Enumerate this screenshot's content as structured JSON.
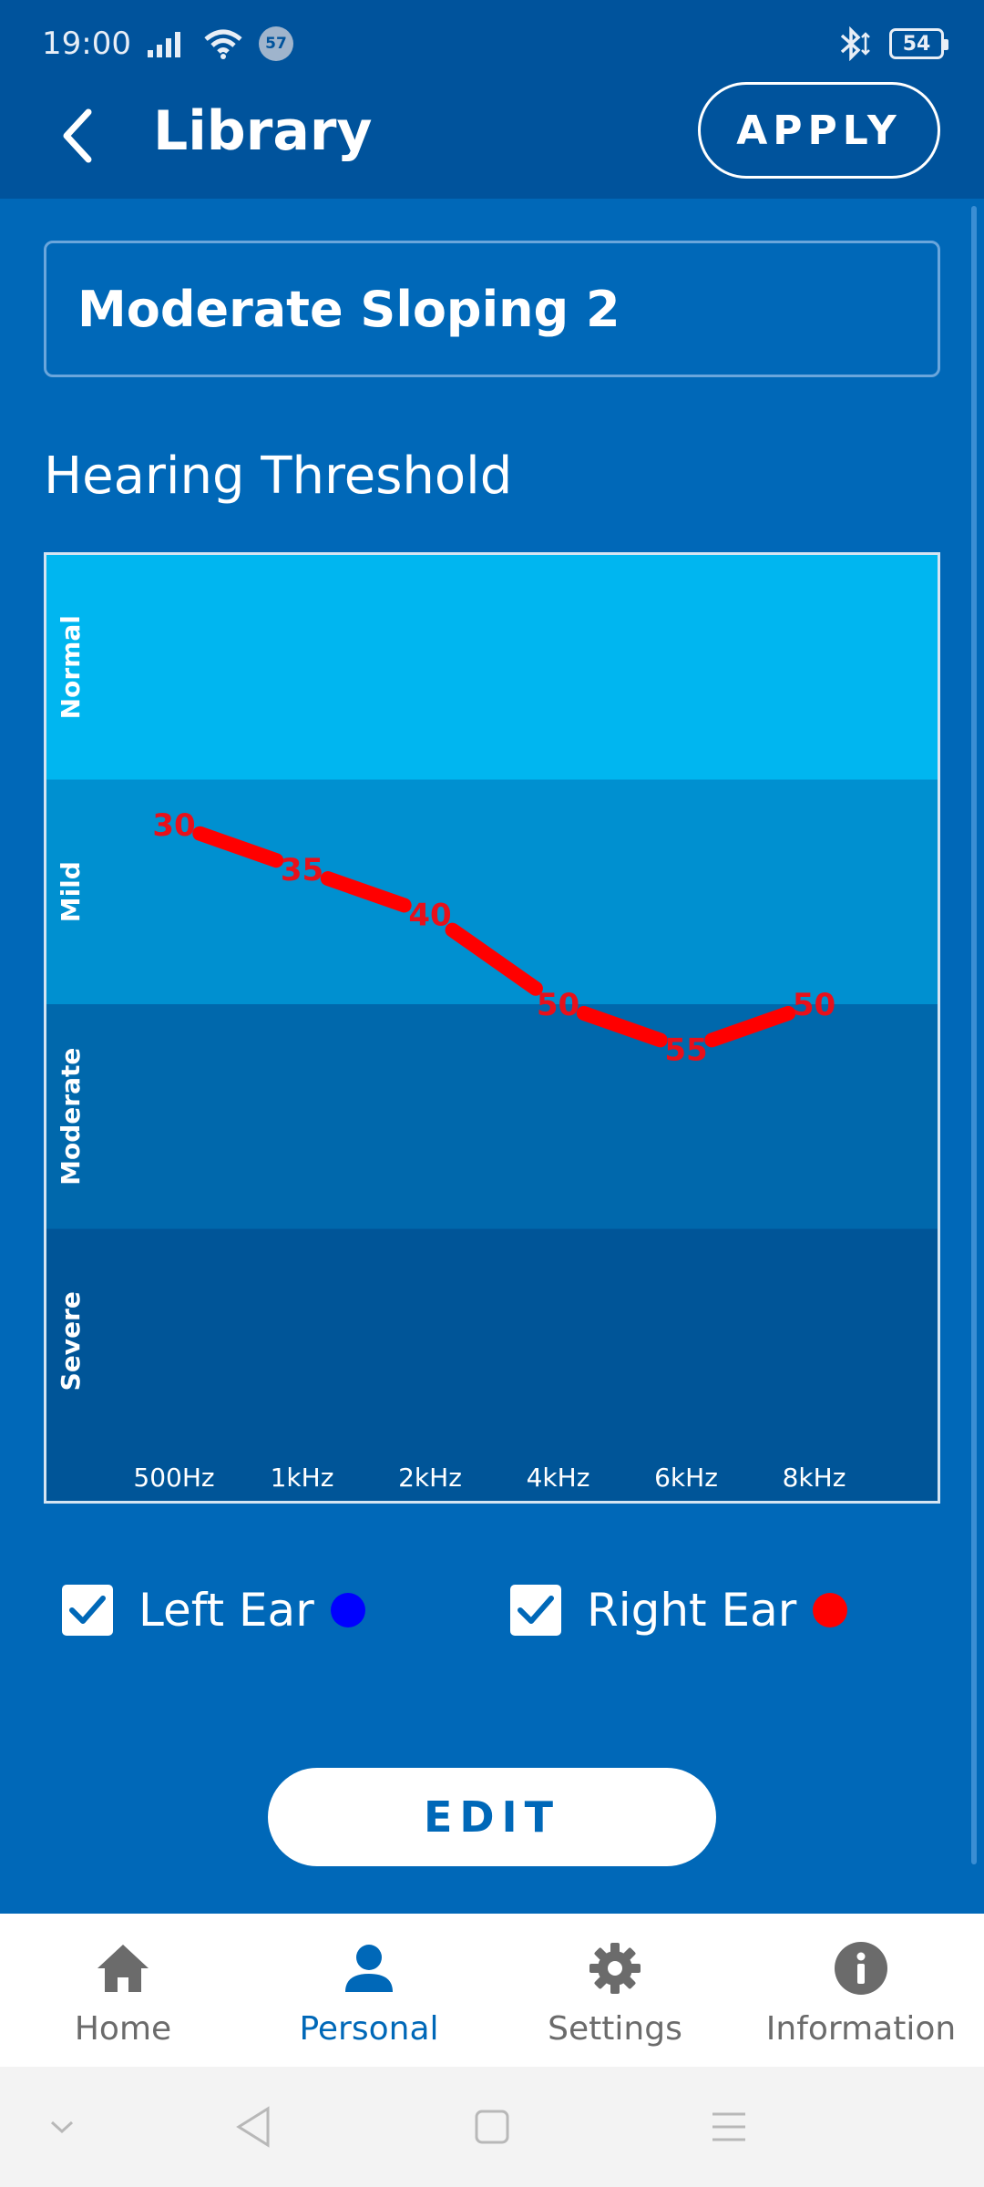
{
  "status_bar": {
    "time": "19:00",
    "notification_badge": "57",
    "battery": "54"
  },
  "app_bar": {
    "title": "Library",
    "apply_label": "APPLY"
  },
  "profile": {
    "name": "Moderate Sloping 2"
  },
  "section": {
    "title": "Hearing Threshold"
  },
  "chart_data": {
    "type": "line",
    "x": [
      "500Hz",
      "1kHz",
      "2kHz",
      "4kHz",
      "6kHz",
      "8kHz"
    ],
    "ylim": [
      0,
      100
    ],
    "y_inverted": true,
    "bands": [
      {
        "label": "Normal",
        "range": [
          0,
          25
        ],
        "color": "#00b6f0"
      },
      {
        "label": "Mild",
        "range": [
          25,
          50
        ],
        "color": "#0090d0"
      },
      {
        "label": "Moderate",
        "range": [
          50,
          75
        ],
        "color": "#0068ac"
      },
      {
        "label": "Severe",
        "range": [
          75,
          100
        ],
        "color": "#005598"
      }
    ],
    "series": [
      {
        "name": "Right Ear",
        "color": "#ff0000",
        "values": [
          30,
          35,
          40,
          50,
          55,
          50
        ]
      }
    ]
  },
  "ears": {
    "left": {
      "label": "Left Ear",
      "checked": true,
      "color": "#0000ff"
    },
    "right": {
      "label": "Right Ear",
      "checked": true,
      "color": "#ff0000"
    }
  },
  "edit_label": "EDIT",
  "bottom_nav": {
    "items": [
      {
        "label": "Home",
        "icon": "home-icon",
        "active": false
      },
      {
        "label": "Personal",
        "icon": "person-icon",
        "active": true
      },
      {
        "label": "Settings",
        "icon": "gear-icon",
        "active": false
      },
      {
        "label": "Information",
        "icon": "info-icon",
        "active": false
      }
    ]
  }
}
